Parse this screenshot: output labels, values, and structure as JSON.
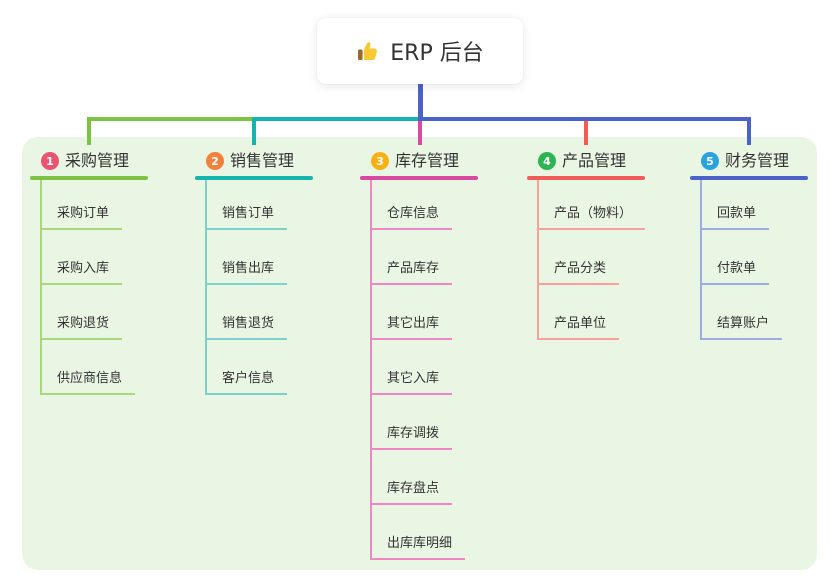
{
  "root": {
    "label": "ERP 后台",
    "icon": "thumbs-up-icon",
    "icon_colors": {
      "hand": "#fcc832",
      "cuff": "#9a6a28"
    }
  },
  "canvas": {
    "background": "#ffffff",
    "panel_color": "#eaf6e4",
    "trunk_color": "#4b63c8",
    "text_color": "#333333"
  },
  "branches": [
    {
      "index": "1",
      "label": "采购管理",
      "badge_color": "#e95470",
      "line_color": "#7dc244",
      "child_line_color": "#abd67d",
      "children": [
        "采购订单",
        "采购入库",
        "采购退货",
        "供应商信息"
      ]
    },
    {
      "index": "2",
      "label": "销售管理",
      "badge_color": "#f2813d",
      "line_color": "#14b5ac",
      "child_line_color": "#7cd2ca",
      "children": [
        "销售订单",
        "销售出库",
        "销售退货",
        "客户信息"
      ]
    },
    {
      "index": "3",
      "label": "库存管理",
      "badge_color": "#f7b115",
      "line_color": "#d8499f",
      "child_line_color": "#ef86c5",
      "children": [
        "仓库信息",
        "产品库存",
        "其它出库",
        "其它入库",
        "库存调拨",
        "库存盘点",
        "出库库明细"
      ]
    },
    {
      "index": "4",
      "label": "产品管理",
      "badge_color": "#2eb453",
      "line_color": "#f15b58",
      "child_line_color": "#f8a09b",
      "children": [
        "产品（物料）",
        "产品分类",
        "产品单位"
      ]
    },
    {
      "index": "5",
      "label": "财务管理",
      "badge_color": "#2aa2dc",
      "line_color": "#4b63c8",
      "child_line_color": "#9cade2",
      "children": [
        "回款单",
        "付款单",
        "结算账户"
      ]
    }
  ]
}
